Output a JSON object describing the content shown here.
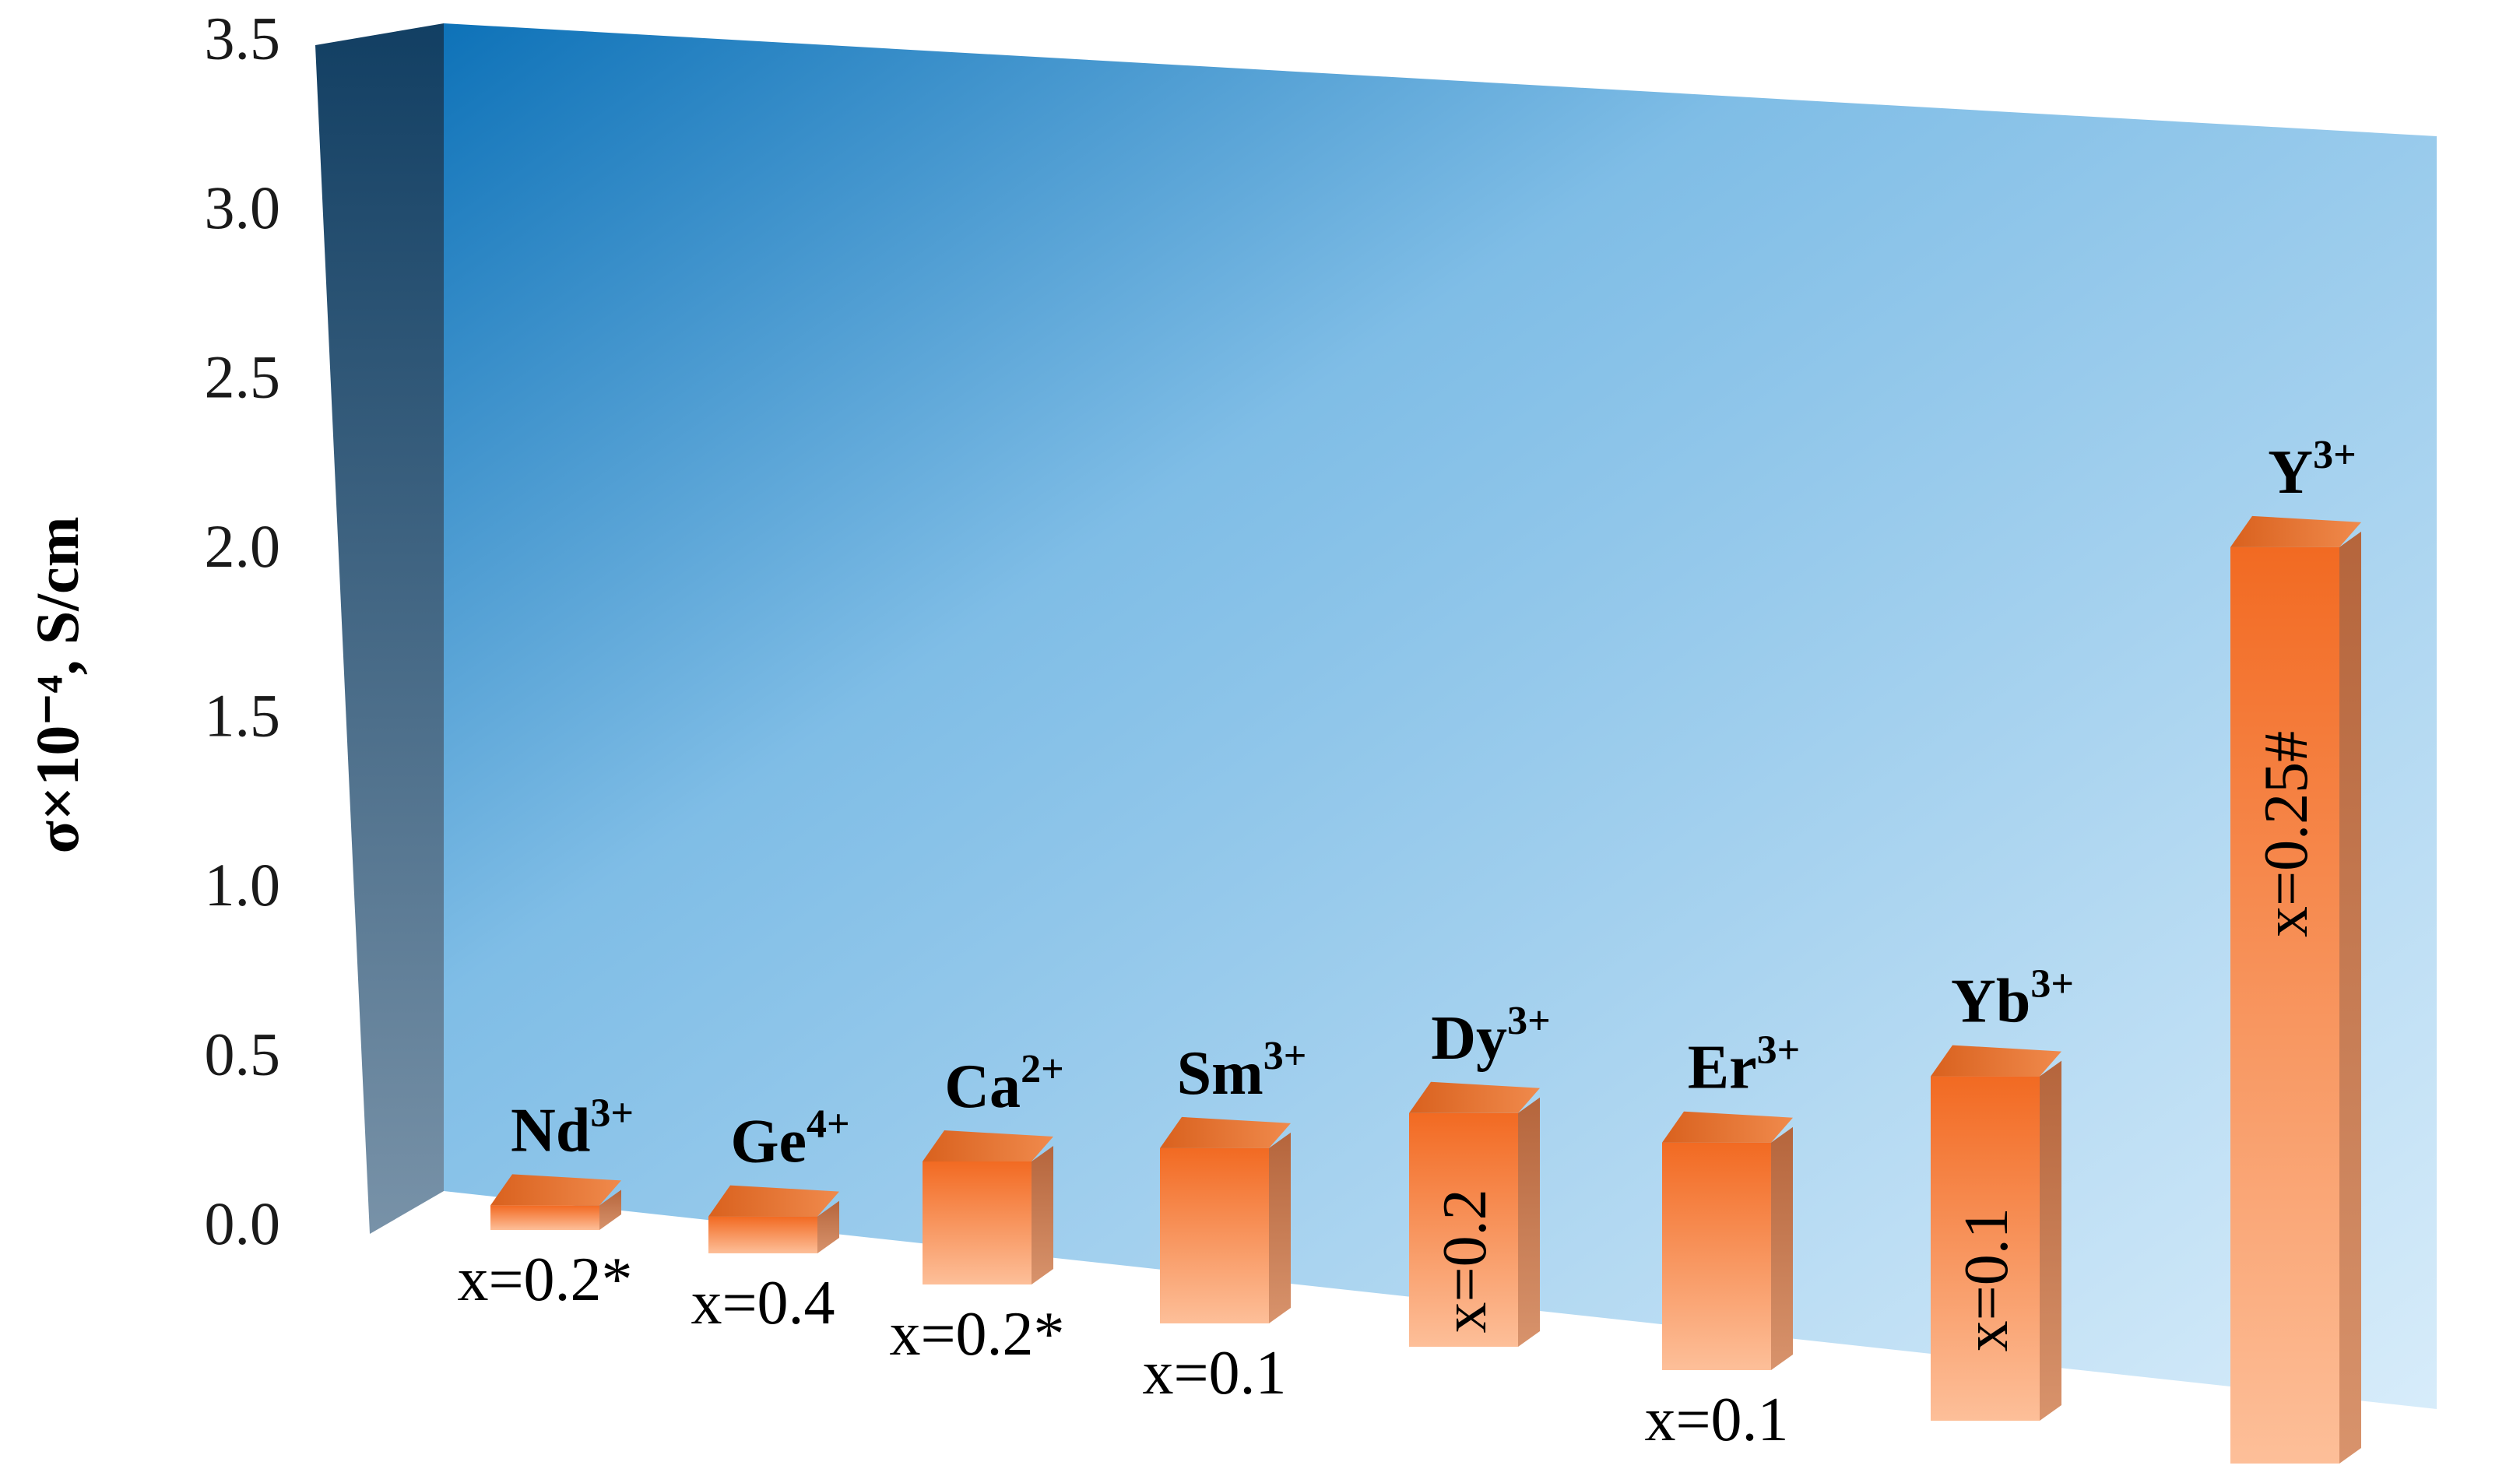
{
  "chart_data": {
    "type": "bar",
    "ylabel": "σ×10⁻⁴, S/cm",
    "ylim": [
      0,
      3.5
    ],
    "yticks": [
      "0.0",
      "0.5",
      "1.0",
      "1.5",
      "2.0",
      "2.5",
      "3.0",
      "3.5"
    ],
    "grid": false,
    "legend": "none",
    "style": "3d-bar",
    "colors": {
      "bar": "#f47a35",
      "wall_top": "#0e72b8",
      "wall_light": "#d2e9f8",
      "side_wall": "#5a7f9c"
    },
    "categories": [
      {
        "ion": "Nd",
        "charge": "3+",
        "x_label": "x=0.2*",
        "value": 0.08
      },
      {
        "ion": "Ge",
        "charge": "4+",
        "x_label": "x=0.4",
        "value": 0.12
      },
      {
        "ion": "Ca",
        "charge": "2+",
        "x_label": "x=0.2*",
        "value": 0.4
      },
      {
        "ion": "Sm",
        "charge": "3+",
        "x_label": "x=0.1",
        "value": 0.57
      },
      {
        "ion": "Dy",
        "charge": "3+",
        "x_label": "x=0.2",
        "value": 0.76
      },
      {
        "ion": "Er",
        "charge": "3+",
        "x_label": "x=0.1",
        "value": 0.74
      },
      {
        "ion": "Yb",
        "charge": "3+",
        "x_label": "x=0.1",
        "value": 1.12
      },
      {
        "ion": "Y",
        "charge": "3+",
        "x_label": "x=0.25#",
        "value": 2.98
      }
    ]
  }
}
